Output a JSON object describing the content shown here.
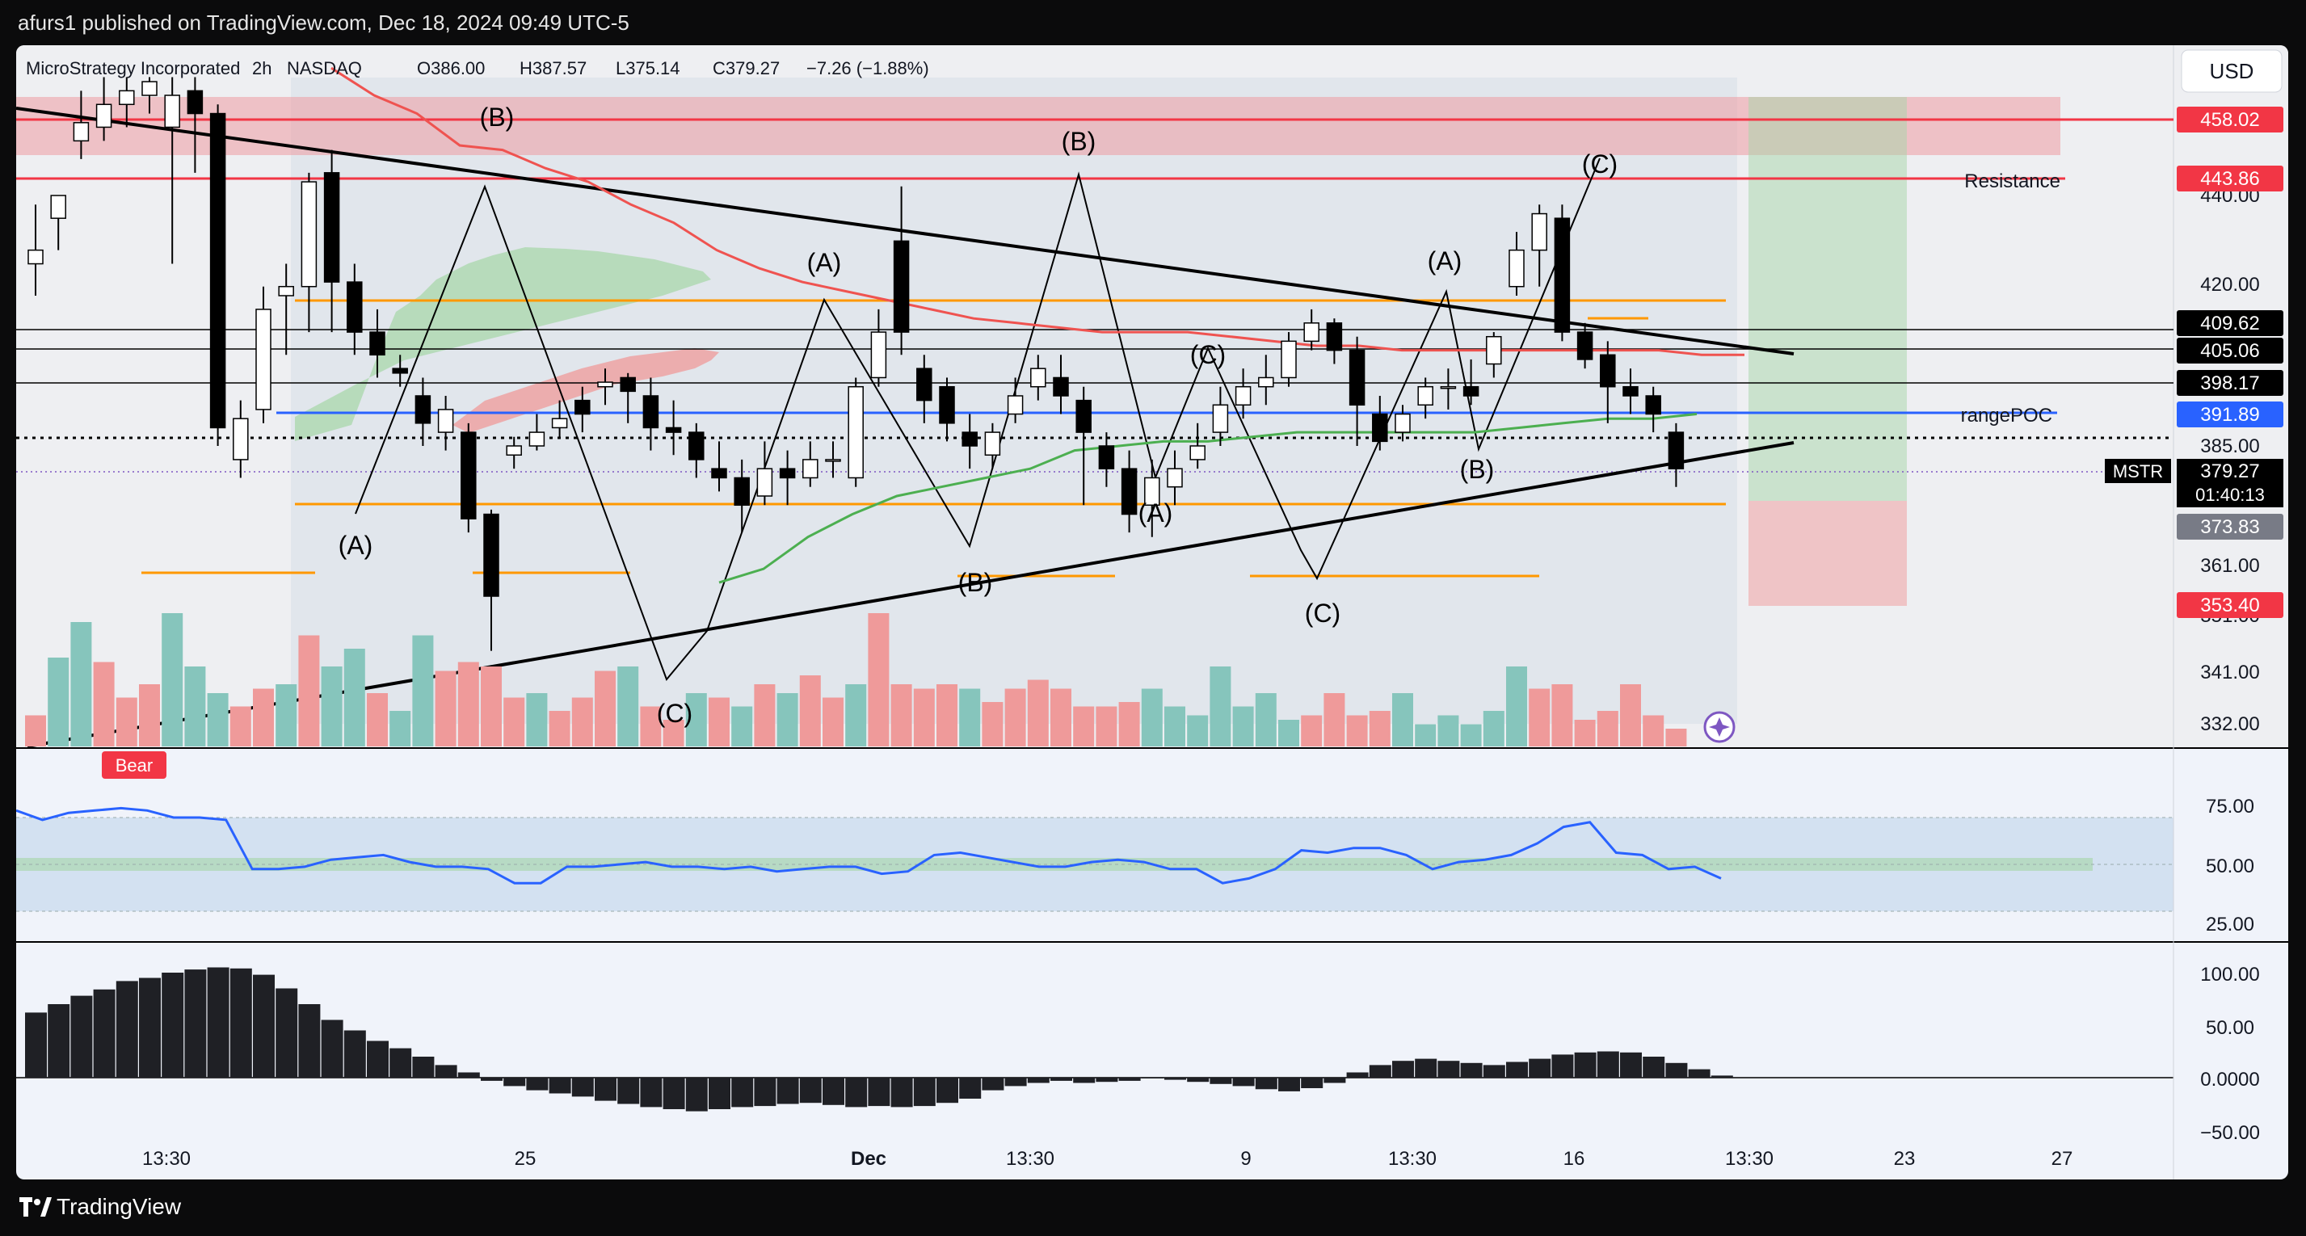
{
  "header": {
    "published": "afurs1 published on TradingView.com, Dec 18, 2024 09:49 UTC-5"
  },
  "footer": {
    "brand": "TradingView"
  },
  "colors": {
    "bull": "#ffffff",
    "bear": "#000000",
    "red_line": "#f23645",
    "blue_line": "#2962ff",
    "orange_line": "#ff9800",
    "green_ma": "#4caf50",
    "red_ma": "#ef5350",
    "rsi": "#2962ff",
    "vol_up": "#86c5bc",
    "vol_down": "#ef9a9a"
  },
  "legend": {
    "symbol": "MicroStrategy Incorporated",
    "interval": "2h",
    "exchange": "NASDAQ",
    "open": "O386.00",
    "high": "H387.57",
    "low": "L375.14",
    "close": "C379.27",
    "change": "−7.26 (−1.88%)"
  },
  "currency_button": "USD",
  "annotations": {
    "resistance": "Resistance",
    "range_poc": "rangePOC",
    "bear_badge": "Bear"
  },
  "price_axis": {
    "ticks": [
      "440.00",
      "420.00",
      "385.00",
      "361.00",
      "351.00",
      "341.00",
      "332.00"
    ]
  },
  "price_tags": [
    {
      "text": "458.02",
      "bg": "#f23645",
      "fg": "#ffffff"
    },
    {
      "text": "443.86",
      "bg": "#f23645",
      "fg": "#ffffff"
    },
    {
      "text": "409.62",
      "bg": "#000000",
      "fg": "#ffffff"
    },
    {
      "text": "405.06",
      "bg": "#000000",
      "fg": "#ffffff"
    },
    {
      "text": "398.17",
      "bg": "#000000",
      "fg": "#ffffff"
    },
    {
      "text": "391.89",
      "bg": "#2962ff",
      "fg": "#ffffff"
    },
    {
      "text": "373.83",
      "bg": "#787b86",
      "fg": "#ffffff"
    },
    {
      "text": "353.40",
      "bg": "#f23645",
      "fg": "#ffffff"
    }
  ],
  "last_price": {
    "symbol": "MSTR",
    "price": "379.27",
    "countdown": "01:40:13"
  },
  "time_axis": {
    "ticks": [
      "13:30",
      "25",
      "Dec",
      "13:30",
      "9",
      "13:30",
      "16",
      "13:30",
      "23",
      "27"
    ]
  },
  "rsi_axis": {
    "ticks": [
      "75.00",
      "50.00",
      "25.00"
    ]
  },
  "macd_axis": {
    "ticks": [
      "100.00",
      "50.00",
      "0.0000",
      "−50.00"
    ]
  },
  "wave_labels": [
    "(A)",
    "(B)",
    "(C)",
    "(A)",
    "(B)",
    "(C)",
    "(A)",
    "(B)",
    "(C)",
    "(A)",
    "(B)",
    "(C)"
  ],
  "chart_data": {
    "type": "candlestick",
    "symbol": "MSTR",
    "title": "MicroStrategy Incorporated, 2h, NASDAQ",
    "ylim": [
      326,
      466
    ],
    "price_levels": [
      458.02,
      443.86,
      409.62,
      405.06,
      398.17,
      391.89,
      373.83,
      353.4
    ],
    "last_close": 379.27,
    "candles": [
      [
        425,
        428,
        418,
        438
      ],
      [
        435,
        440,
        428,
        440
      ],
      [
        452,
        456,
        448,
        463
      ],
      [
        455,
        460,
        452,
        466
      ],
      [
        460,
        463,
        455,
        466
      ],
      [
        462,
        465,
        458,
        466
      ],
      [
        455,
        462,
        425,
        466
      ],
      [
        463,
        458,
        445,
        466
      ],
      [
        458,
        389,
        385,
        460
      ],
      [
        382,
        391,
        378,
        395
      ],
      [
        393,
        415,
        390,
        420
      ],
      [
        418,
        420,
        405,
        425
      ],
      [
        420,
        443,
        410,
        445
      ],
      [
        445,
        421,
        410,
        450
      ],
      [
        421,
        410,
        405,
        425
      ],
      [
        410,
        405,
        400,
        415
      ],
      [
        402,
        401,
        398,
        405
      ],
      [
        396,
        390,
        385,
        400
      ],
      [
        388,
        393,
        384,
        396
      ],
      [
        388,
        369,
        366,
        390
      ],
      [
        370,
        352,
        340,
        371
      ],
      [
        383,
        385,
        380,
        387
      ],
      [
        385,
        388,
        384,
        392
      ],
      [
        389,
        391,
        387,
        395
      ],
      [
        395,
        392,
        388,
        398
      ],
      [
        398,
        399,
        394,
        402
      ],
      [
        400,
        397,
        390,
        401
      ],
      [
        396,
        389,
        384,
        400
      ],
      [
        389,
        388,
        383,
        395
      ],
      [
        388,
        382,
        378,
        390
      ],
      [
        380,
        378,
        375,
        386
      ],
      [
        378,
        372,
        366,
        382
      ],
      [
        374,
        380,
        372,
        386
      ],
      [
        380,
        378,
        372,
        384
      ],
      [
        378,
        382,
        376,
        386
      ],
      [
        382,
        382,
        378,
        386
      ],
      [
        378,
        398,
        376,
        400
      ],
      [
        400,
        410,
        398,
        415
      ],
      [
        430,
        410,
        405,
        442
      ],
      [
        402,
        395,
        390,
        405
      ],
      [
        398,
        390,
        386,
        400
      ],
      [
        388,
        385,
        380,
        392
      ],
      [
        383,
        388,
        380,
        390
      ],
      [
        392,
        396,
        390,
        400
      ],
      [
        398,
        402,
        395,
        405
      ],
      [
        400,
        396,
        392,
        405
      ],
      [
        395,
        388,
        372,
        398
      ],
      [
        385,
        380,
        376,
        388
      ],
      [
        380,
        370,
        366,
        384
      ],
      [
        372,
        378,
        365,
        382
      ],
      [
        376,
        380,
        372,
        384
      ],
      [
        382,
        385,
        380,
        390
      ],
      [
        388,
        394,
        385,
        398
      ],
      [
        394,
        398,
        391,
        402
      ],
      [
        398,
        400,
        394,
        405
      ],
      [
        400,
        408,
        398,
        410
      ],
      [
        408,
        412,
        406,
        415
      ],
      [
        412,
        406,
        403,
        413
      ],
      [
        406,
        394,
        385,
        409
      ],
      [
        392,
        386,
        384,
        396
      ],
      [
        388,
        392,
        386,
        394
      ],
      [
        394,
        398,
        391,
        400
      ],
      [
        398,
        398,
        393,
        402
      ],
      [
        398,
        396,
        394,
        404
      ],
      [
        403,
        409,
        400,
        410
      ],
      [
        420,
        428,
        418,
        432
      ],
      [
        428,
        436,
        420,
        438
      ],
      [
        435,
        410,
        408,
        438
      ],
      [
        410,
        404,
        402,
        412
      ],
      [
        405,
        398,
        390,
        408
      ],
      [
        398,
        396,
        392,
        402
      ],
      [
        396,
        392,
        388,
        398
      ],
      [
        388,
        380,
        376,
        390
      ]
    ],
    "ma_red": [
      468,
      462,
      458,
      451,
      450,
      446,
      443,
      438,
      434,
      428,
      424,
      421,
      419,
      417,
      415,
      413,
      412,
      411,
      410,
      410,
      410,
      409,
      408,
      407,
      407,
      406,
      406,
      406,
      406,
      406,
      406,
      406,
      405,
      405
    ],
    "ma_green": [
      355,
      358,
      365,
      370,
      374,
      376,
      378,
      380,
      384,
      385,
      386,
      386,
      387,
      388,
      388,
      388,
      388,
      388,
      389,
      390,
      391,
      391,
      392
    ],
    "volume": [
      {
        "v": 7,
        "d": "down"
      },
      {
        "v": 20,
        "d": "up"
      },
      {
        "v": 28,
        "d": "up"
      },
      {
        "v": 19,
        "d": "down"
      },
      {
        "v": 11,
        "d": "down"
      },
      {
        "v": 14,
        "d": "down"
      },
      {
        "v": 30,
        "d": "up"
      },
      {
        "v": 18,
        "d": "up"
      },
      {
        "v": 12,
        "d": "up"
      },
      {
        "v": 9,
        "d": "down"
      },
      {
        "v": 13,
        "d": "down"
      },
      {
        "v": 14,
        "d": "up"
      },
      {
        "v": 25,
        "d": "down"
      },
      {
        "v": 18,
        "d": "up"
      },
      {
        "v": 22,
        "d": "up"
      },
      {
        "v": 12,
        "d": "down"
      },
      {
        "v": 8,
        "d": "up"
      },
      {
        "v": 25,
        "d": "up"
      },
      {
        "v": 17,
        "d": "down"
      },
      {
        "v": 19,
        "d": "down"
      },
      {
        "v": 18,
        "d": "down"
      },
      {
        "v": 11,
        "d": "down"
      },
      {
        "v": 12,
        "d": "up"
      },
      {
        "v": 8,
        "d": "down"
      },
      {
        "v": 11,
        "d": "down"
      },
      {
        "v": 17,
        "d": "down"
      },
      {
        "v": 18,
        "d": "up"
      },
      {
        "v": 9,
        "d": "down"
      },
      {
        "v": 6,
        "d": "down"
      },
      {
        "v": 12,
        "d": "up"
      },
      {
        "v": 11,
        "d": "down"
      },
      {
        "v": 9,
        "d": "up"
      },
      {
        "v": 14,
        "d": "down"
      },
      {
        "v": 12,
        "d": "up"
      },
      {
        "v": 16,
        "d": "down"
      },
      {
        "v": 11,
        "d": "down"
      },
      {
        "v": 14,
        "d": "up"
      },
      {
        "v": 30,
        "d": "down"
      },
      {
        "v": 14,
        "d": "down"
      },
      {
        "v": 13,
        "d": "down"
      },
      {
        "v": 14,
        "d": "down"
      },
      {
        "v": 13,
        "d": "up"
      },
      {
        "v": 10,
        "d": "down"
      },
      {
        "v": 13,
        "d": "down"
      },
      {
        "v": 15,
        "d": "down"
      },
      {
        "v": 13,
        "d": "down"
      },
      {
        "v": 9,
        "d": "down"
      },
      {
        "v": 9,
        "d": "down"
      },
      {
        "v": 10,
        "d": "down"
      },
      {
        "v": 13,
        "d": "up"
      },
      {
        "v": 9,
        "d": "up"
      },
      {
        "v": 7,
        "d": "up"
      },
      {
        "v": 18,
        "d": "up"
      },
      {
        "v": 9,
        "d": "up"
      },
      {
        "v": 12,
        "d": "up"
      },
      {
        "v": 6,
        "d": "up"
      },
      {
        "v": 7,
        "d": "down"
      },
      {
        "v": 12,
        "d": "down"
      },
      {
        "v": 7,
        "d": "down"
      },
      {
        "v": 8,
        "d": "down"
      },
      {
        "v": 12,
        "d": "up"
      },
      {
        "v": 5,
        "d": "up"
      },
      {
        "v": 7,
        "d": "up"
      },
      {
        "v": 5,
        "d": "up"
      },
      {
        "v": 8,
        "d": "up"
      },
      {
        "v": 18,
        "d": "up"
      },
      {
        "v": 13,
        "d": "down"
      },
      {
        "v": 14,
        "d": "down"
      },
      {
        "v": 6,
        "d": "down"
      },
      {
        "v": 8,
        "d": "down"
      },
      {
        "v": 14,
        "d": "down"
      },
      {
        "v": 7,
        "d": "down"
      },
      {
        "v": 4,
        "d": "down"
      }
    ],
    "rsi_ylim": [
      15,
      90
    ],
    "rsi_bands": [
      30,
      70
    ],
    "rsi_midline": 50,
    "rsi": [
      73,
      69,
      72,
      73,
      74,
      73,
      70,
      70,
      69,
      48,
      48,
      49,
      52,
      53,
      54,
      51,
      49,
      49,
      48,
      42,
      42,
      49,
      49,
      50,
      51,
      49,
      49,
      48,
      49,
      47,
      48,
      49,
      49,
      46,
      47,
      54,
      55,
      53,
      51,
      49,
      49,
      51,
      52,
      51,
      48,
      48,
      42,
      44,
      48,
      56,
      55,
      57,
      57,
      54,
      48,
      51,
      52,
      54,
      59,
      66,
      68,
      55,
      54,
      48,
      49,
      44
    ],
    "macd_ylim": [
      -60,
      120
    ],
    "macd": [
      62,
      70,
      78,
      84,
      92,
      95,
      100,
      103,
      105,
      104,
      98,
      85,
      70,
      55,
      45,
      35,
      28,
      20,
      12,
      5,
      -3,
      -8,
      -12,
      -15,
      -18,
      -22,
      -25,
      -28,
      -30,
      -32,
      -30,
      -28,
      -27,
      -25,
      -24,
      -26,
      -28,
      -27,
      -28,
      -27,
      -24,
      -20,
      -12,
      -8,
      -5,
      -3,
      -5,
      -4,
      -3,
      0,
      -2,
      -4,
      -6,
      -8,
      -11,
      -13,
      -10,
      -5,
      5,
      12,
      16,
      18,
      16,
      14,
      12,
      15,
      18,
      22,
      24,
      25,
      24,
      20,
      14,
      8,
      2
    ]
  }
}
